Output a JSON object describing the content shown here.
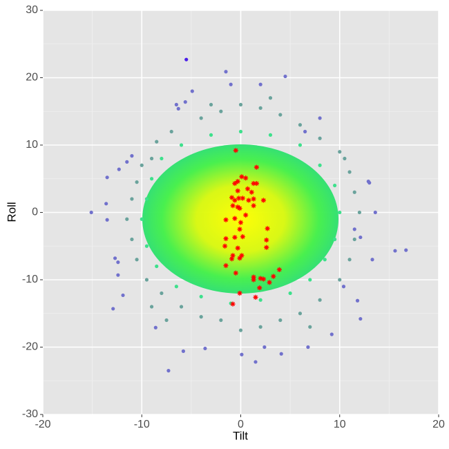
{
  "chart_data": {
    "type": "scatter",
    "x_label": "Tilt",
    "y_label": "Roll",
    "xlim": [
      -20,
      20
    ],
    "ylim": [
      -30,
      30
    ],
    "xticks": [
      -20,
      -10,
      0,
      10,
      20
    ],
    "yticks": [
      -30,
      -20,
      -10,
      0,
      10,
      20,
      30
    ],
    "grid": true,
    "series": [
      {
        "color": "#7171cc",
        "marker": "circle",
        "x": [
          -1.5,
          4.5,
          2.0,
          -1.0,
          -4.9,
          -5.6,
          -6.3,
          -15.1,
          -13.5,
          -13.6,
          -13.5,
          -12.9,
          -7.3,
          1.5,
          15.6,
          16.7,
          13.6,
          12.9,
          13.0,
          6.8,
          9.2,
          12.1,
          11.8,
          0.1,
          -3.6,
          -5.8,
          -8.6,
          -12.4,
          -12.7,
          -12.4,
          11.5,
          12.1,
          -11.9,
          -12.3,
          -11.5,
          -11.0,
          13.3,
          10.4,
          4.1,
          2.4,
          -6.5,
          8.0,
          6.5
        ],
        "values": [
          20.9,
          20.2,
          19.0,
          19.0,
          18.0,
          16.4,
          15.4,
          0.0,
          5.2,
          1.3,
          -1.1,
          -14.3,
          -23.5,
          -22.2,
          -5.7,
          -5.6,
          0.0,
          4.6,
          4.4,
          -20.0,
          -18.1,
          -15.8,
          -13.1,
          -21.1,
          -20.2,
          -20.6,
          -17.1,
          -9.3,
          -6.8,
          -7.4,
          -2.5,
          -3.7,
          -12.3,
          6.4,
          7.5,
          8.4,
          -7.0,
          -11.0,
          -21.0,
          -20.0,
          16.0,
          14.0,
          12.0
        ]
      },
      {
        "color": "#4a1ee8",
        "marker": "circle",
        "x": [
          -5.5
        ],
        "values": [
          22.7
        ]
      },
      {
        "color": "#6aa39c",
        "marker": "circle",
        "x": [
          -10,
          -9,
          -8.5,
          -7,
          -4,
          -2,
          0,
          2,
          4,
          6,
          8,
          10,
          11,
          11.5,
          12,
          11.5,
          11,
          10,
          8,
          6,
          4,
          2,
          0,
          -2,
          -4,
          -6,
          -8,
          -9.5,
          -10.5,
          -11,
          -11.5,
          -11,
          -10.5,
          -3,
          3,
          -7.5,
          7,
          10.5,
          -9
        ],
        "values": [
          7,
          8,
          10.5,
          12,
          14,
          15,
          16,
          15.5,
          14.5,
          13,
          11,
          9,
          6,
          3,
          0,
          -4,
          -7,
          -10,
          -13,
          -15,
          -16,
          -17,
          -17.5,
          -16,
          -15.5,
          -14,
          -12,
          -10,
          -7,
          -4,
          -1,
          2,
          4.5,
          16,
          17,
          -16,
          -17,
          8,
          -14
        ]
      },
      {
        "color": "#3ee08c",
        "marker": "circle",
        "x": [
          -9,
          -8,
          -6,
          -3,
          0,
          3,
          6,
          8,
          9.5,
          10,
          9.5,
          8.5,
          7,
          5,
          2,
          -1,
          -4,
          -6.5,
          -8.5,
          -9.5,
          -10,
          -9.5
        ],
        "values": [
          5,
          8,
          10,
          11.5,
          12,
          11.5,
          10,
          7,
          4,
          0,
          -4,
          -7,
          -10,
          -12,
          -13,
          -13.5,
          -12.5,
          -11,
          -8,
          -5,
          -1,
          2
        ]
      },
      {
        "color": "#ff0000",
        "marker": "asterisk",
        "x": [
          -0.5,
          1.6,
          0.1,
          0.5,
          -0.3,
          -0.6,
          1.3,
          1.6,
          0.7,
          -0.3,
          1.1,
          -0.9,
          -0.2,
          0.2,
          -0.6,
          0.8,
          1.3,
          2.3,
          -0.8,
          -0.3,
          -0.1,
          1.3,
          0.5,
          -0.6,
          -1.5,
          0.0,
          2.7,
          -0.1,
          -0.6,
          0.2,
          -1.5,
          2.6,
          -1.6,
          -0.3,
          2.6,
          -0.8,
          0.1,
          -0.9,
          -0.1,
          -1.5,
          3.9,
          -0.5,
          3.3,
          1.3,
          2.0,
          1.3,
          2.3,
          2.9,
          1.9,
          -0.1,
          1.5,
          -0.8
        ],
        "values": [
          9.2,
          6.7,
          5.3,
          5.1,
          4.6,
          4.3,
          4.3,
          4.3,
          3.5,
          3.2,
          3.0,
          2.2,
          2.1,
          2.1,
          1.8,
          1.8,
          2.0,
          1.8,
          1.0,
          0.8,
          0.6,
          1.0,
          -0.4,
          -0.9,
          -1.1,
          -1.5,
          -2.4,
          -2.5,
          -3.7,
          -3.6,
          -3.9,
          -4.1,
          -5.0,
          -5.3,
          -5.2,
          -6.4,
          -6.4,
          -6.9,
          -6.8,
          -7.9,
          -8.5,
          -9.0,
          -9.5,
          -9.6,
          -9.8,
          -10.0,
          -9.9,
          -10.4,
          -11.2,
          -12.0,
          -12.6,
          -13.6
        ]
      }
    ]
  }
}
